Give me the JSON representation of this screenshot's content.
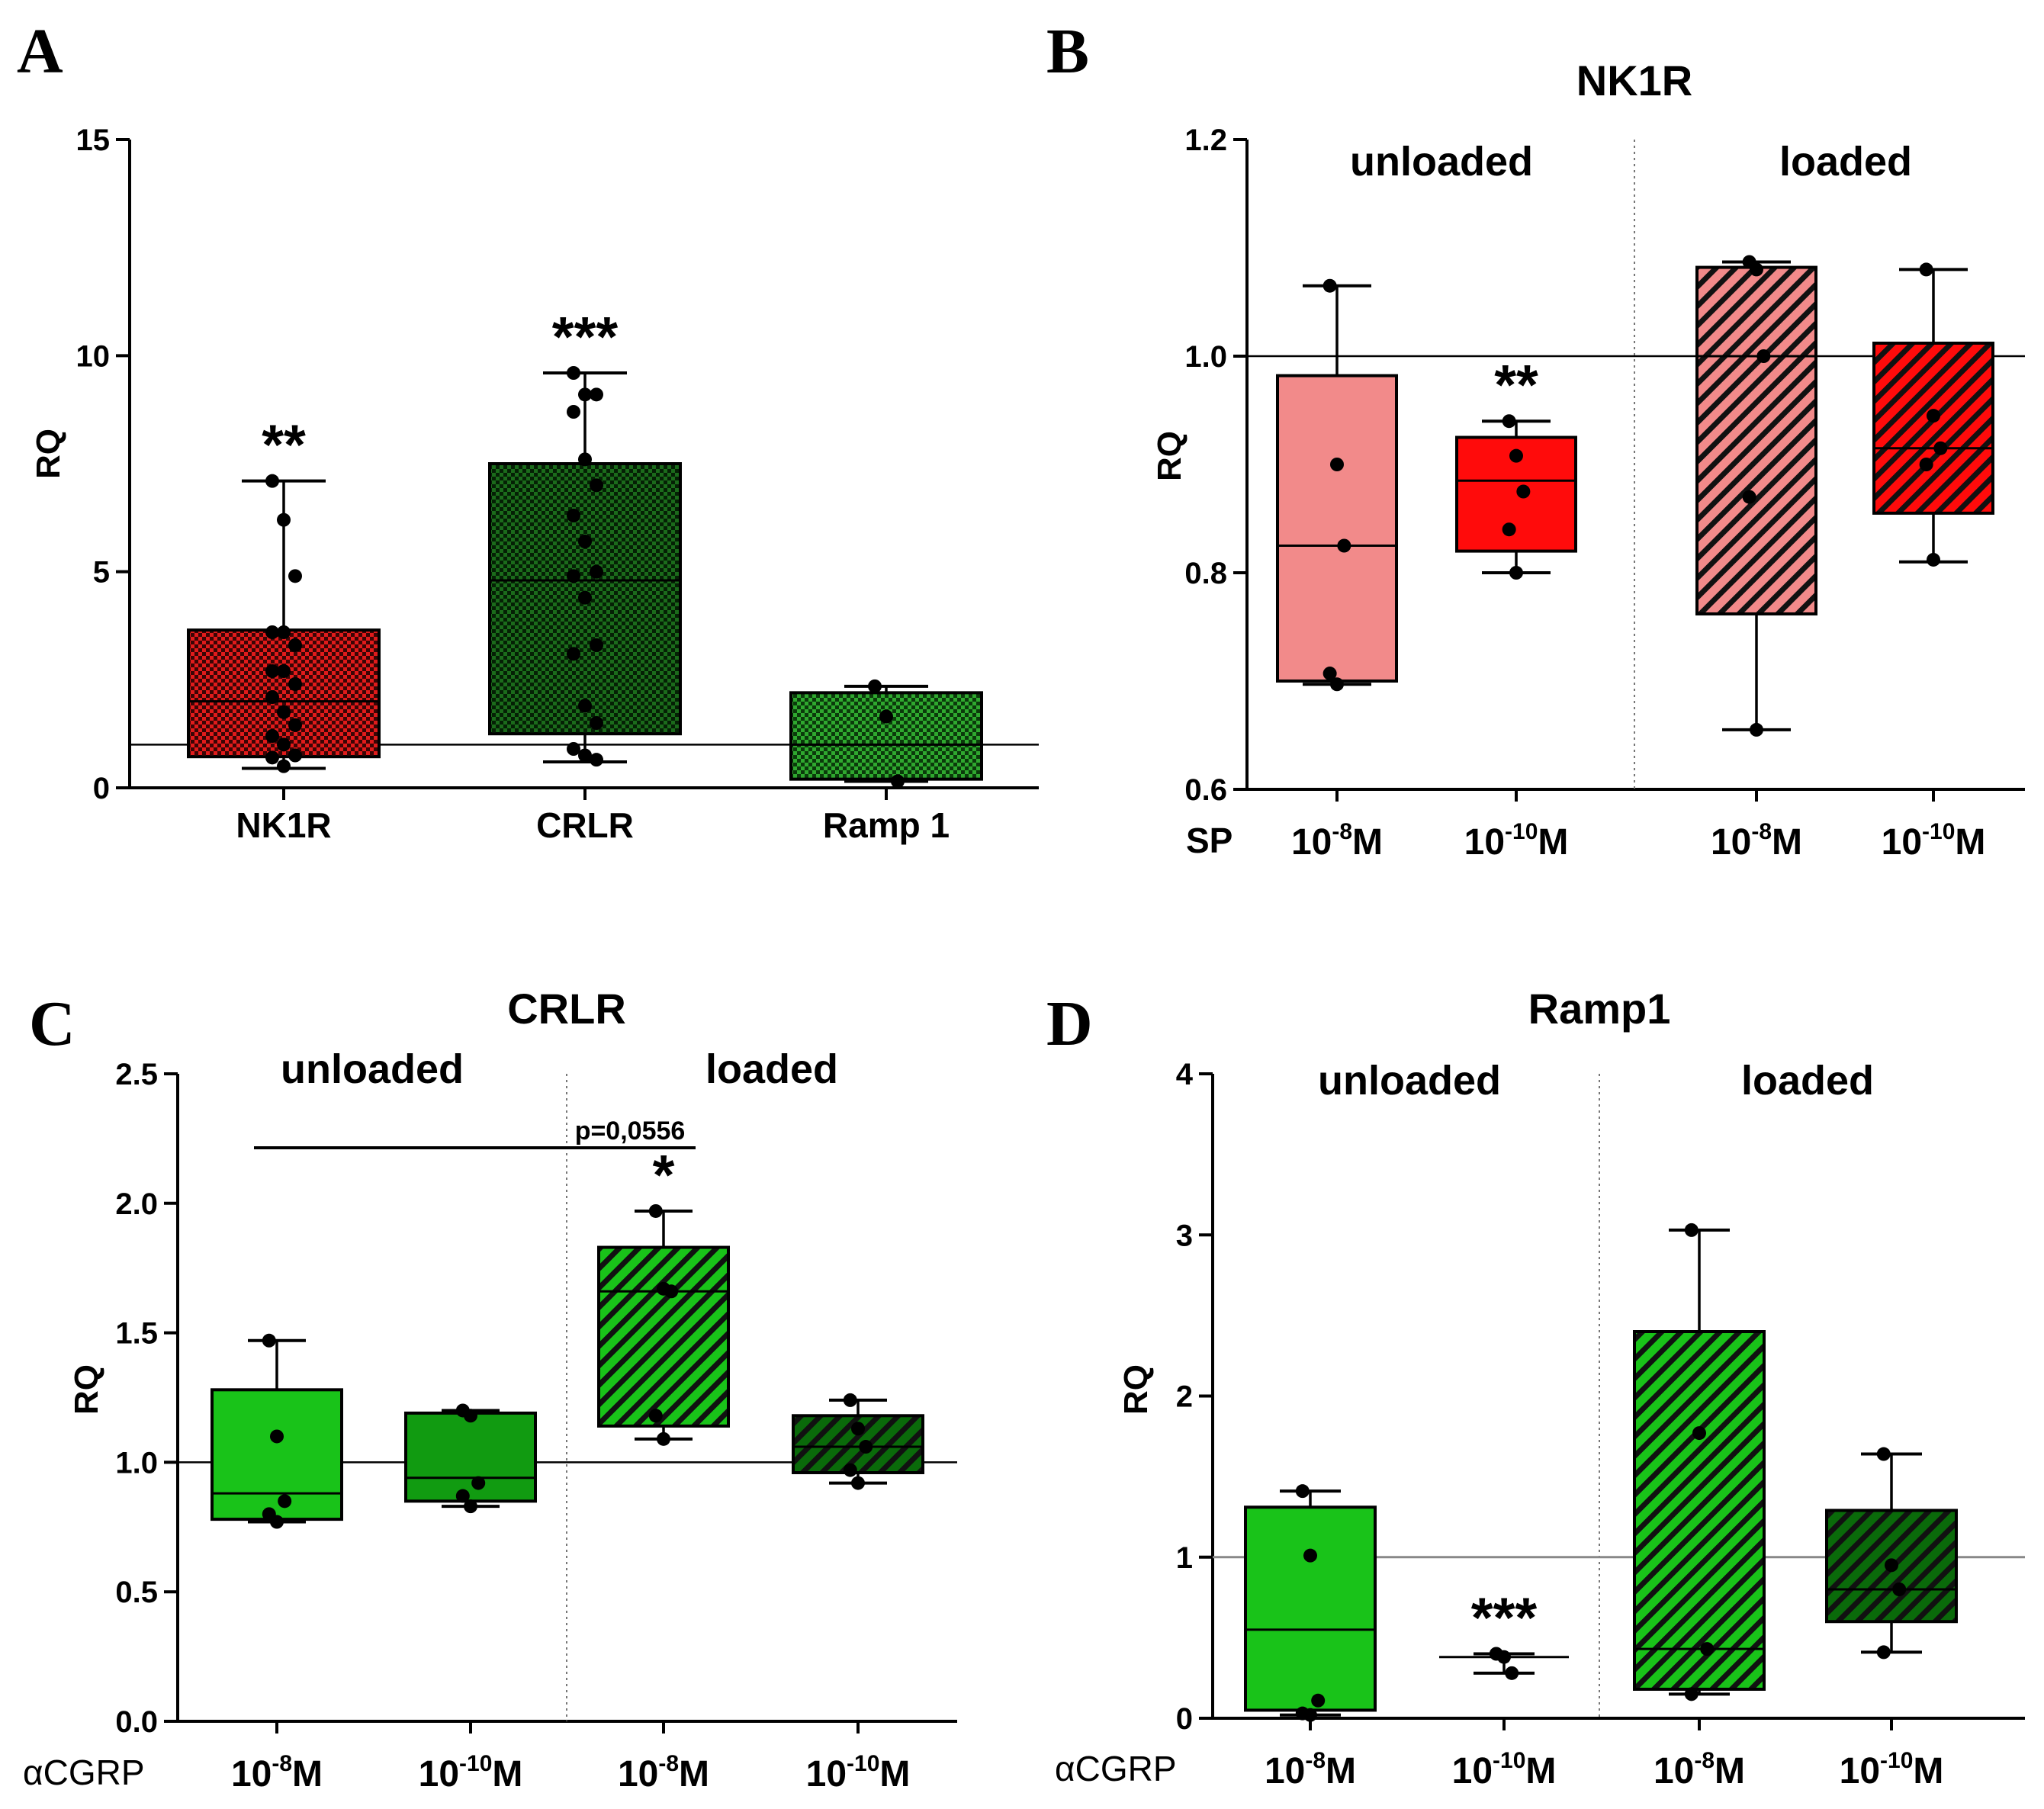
{
  "colors": {
    "nk1r_red": "#e01b1b",
    "crlr_green_dark": "#1b6b1b",
    "ramp_green": "#2fa82f",
    "pink": "#f28a8a",
    "red": "#ff0b0b",
    "green": "#19c319",
    "green_mid": "#119b11",
    "green_dark": "#0a6a0a",
    "axis": "#000000"
  },
  "chart_data": [
    {
      "panel": "A",
      "type": "box",
      "title": "",
      "ylabel": "RQ",
      "ylim": [
        0,
        15
      ],
      "yticks": [
        "0",
        "5",
        "10",
        "15"
      ],
      "reference_line": 1,
      "categories": [
        "NK1R",
        "CRLR",
        "Ramp 1"
      ],
      "boxes": [
        {
          "name": "NK1R",
          "min": 0.45,
          "q1": 0.72,
          "median": 2.0,
          "q3": 3.65,
          "max": 7.1,
          "points": [
            7.1,
            6.2,
            4.9,
            3.6,
            3.6,
            3.3,
            2.7,
            2.7,
            2.4,
            2.1,
            1.75,
            1.45,
            1.2,
            1.0,
            0.75,
            0.7,
            0.5
          ],
          "stars": "**",
          "color": "#e01b1b",
          "pattern": "checker"
        },
        {
          "name": "CRLR",
          "min": 0.6,
          "q1": 1.25,
          "median": 4.8,
          "q3": 7.5,
          "max": 9.6,
          "points": [
            9.6,
            9.1,
            9.1,
            8.7,
            7.6,
            7.0,
            6.3,
            5.7,
            5.0,
            4.9,
            4.4,
            3.3,
            3.1,
            1.9,
            1.5,
            0.9,
            0.75,
            0.65
          ],
          "stars": "***",
          "color": "#1b6b1b",
          "pattern": "checker"
        },
        {
          "name": "Ramp 1",
          "min": 0.15,
          "q1": 0.2,
          "median": 1.0,
          "q3": 2.2,
          "max": 2.35,
          "points": [
            2.35,
            1.65,
            0.15
          ],
          "stars": "",
          "color": "#2fa82f",
          "pattern": "checker"
        }
      ]
    },
    {
      "panel": "B",
      "type": "box",
      "title": "NK1R",
      "ylabel": "RQ",
      "ylim": [
        0.6,
        1.2
      ],
      "yticks": [
        "0.6",
        "0.8",
        "1.0",
        "1.2"
      ],
      "reference_line": 1.0,
      "treatment_label": "SP",
      "groups": [
        "unloaded",
        "loaded"
      ],
      "boxes": [
        {
          "group": "unloaded",
          "dose_base": "10",
          "dose_exp": "-8",
          "dose_unit": "M",
          "min": 0.697,
          "q1": 0.7,
          "median": 0.825,
          "q3": 0.982,
          "max": 1.065,
          "points": [
            1.065,
            0.9,
            0.825,
            0.707,
            0.697
          ],
          "stars": "",
          "color": "#f28a8a",
          "pattern": "solid"
        },
        {
          "group": "unloaded",
          "dose_base": "10",
          "dose_exp": "-10",
          "dose_unit": "M",
          "min": 0.8,
          "q1": 0.82,
          "median": 0.885,
          "q3": 0.925,
          "max": 0.94,
          "points": [
            0.94,
            0.908,
            0.875,
            0.84,
            0.8
          ],
          "stars": "**",
          "color": "#ff0b0b",
          "pattern": "solid"
        },
        {
          "group": "loaded",
          "dose_base": "10",
          "dose_exp": "-8",
          "dose_unit": "M",
          "min": 0.655,
          "q1": 0.762,
          "median": 1.0,
          "q3": 1.082,
          "max": 1.087,
          "points": [
            1.087,
            1.08,
            1.0,
            0.87,
            0.655
          ],
          "stars": "",
          "color": "#f28a8a",
          "pattern": "hatch"
        },
        {
          "group": "loaded",
          "dose_base": "10",
          "dose_exp": "-10",
          "dose_unit": "M",
          "min": 0.81,
          "q1": 0.855,
          "median": 0.915,
          "q3": 1.012,
          "max": 1.08,
          "points": [
            1.08,
            0.945,
            0.915,
            0.9,
            0.812
          ],
          "stars": "",
          "color": "#ff0b0b",
          "pattern": "hatch"
        }
      ]
    },
    {
      "panel": "C",
      "type": "box",
      "title": "CRLR",
      "ylabel": "RQ",
      "ylim": [
        0.0,
        2.5
      ],
      "yticks": [
        "0.0",
        "0.5",
        "1.0",
        "1.5",
        "2.0",
        "2.5"
      ],
      "reference_line": 1.0,
      "treatment_label": "αCGRP",
      "groups": [
        "unloaded",
        "loaded"
      ],
      "annotation": "p=0,0556",
      "boxes": [
        {
          "group": "unloaded",
          "dose_base": "10",
          "dose_exp": "-8",
          "dose_unit": "M",
          "min": 0.77,
          "q1": 0.78,
          "median": 0.88,
          "q3": 1.28,
          "max": 1.47,
          "points": [
            1.47,
            1.1,
            0.85,
            0.8,
            0.77
          ],
          "stars": "",
          "color": "#19c319",
          "pattern": "solid"
        },
        {
          "group": "unloaded",
          "dose_base": "10",
          "dose_exp": "-10",
          "dose_unit": "M",
          "min": 0.83,
          "q1": 0.85,
          "median": 0.94,
          "q3": 1.19,
          "max": 1.2,
          "points": [
            1.2,
            1.18,
            0.92,
            0.87,
            0.83
          ],
          "stars": "",
          "color": "#119b11",
          "pattern": "solid"
        },
        {
          "group": "loaded",
          "dose_base": "10",
          "dose_exp": "-8",
          "dose_unit": "M",
          "min": 1.09,
          "q1": 1.14,
          "median": 1.66,
          "q3": 1.83,
          "max": 1.97,
          "points": [
            1.97,
            1.67,
            1.66,
            1.18,
            1.09
          ],
          "stars": "*",
          "color": "#19c319",
          "pattern": "hatch"
        },
        {
          "group": "loaded",
          "dose_base": "10",
          "dose_exp": "-10",
          "dose_unit": "M",
          "min": 0.92,
          "q1": 0.96,
          "median": 1.06,
          "q3": 1.18,
          "max": 1.24,
          "points": [
            1.24,
            1.13,
            1.06,
            0.97,
            0.92
          ],
          "stars": "",
          "color": "#0a6a0a",
          "pattern": "hatch"
        }
      ]
    },
    {
      "panel": "D",
      "type": "box",
      "title": "Ramp1",
      "ylabel": "RQ",
      "ylim": [
        0,
        4
      ],
      "yticks": [
        "0",
        "1",
        "2",
        "3",
        "4"
      ],
      "reference_line": 1,
      "treatment_label": "αCGRP",
      "groups": [
        "unloaded",
        "loaded"
      ],
      "boxes": [
        {
          "group": "unloaded",
          "dose_base": "10",
          "dose_exp": "-8",
          "dose_unit": "M",
          "min": 0.02,
          "q1": 0.05,
          "median": 0.55,
          "q3": 1.31,
          "max": 1.41,
          "points": [
            1.41,
            1.01,
            0.11,
            0.03,
            0.02
          ],
          "stars": "",
          "color": "#19c319",
          "pattern": "solid"
        },
        {
          "group": "unloaded",
          "dose_base": "10",
          "dose_exp": "-10",
          "dose_unit": "M",
          "min": 0.28,
          "q1": 0.38,
          "median": 0.38,
          "q3": 0.38,
          "max": 0.4,
          "points": [
            0.4,
            0.38,
            0.28
          ],
          "stars": "***",
          "color": "#119b11",
          "pattern": "solid"
        },
        {
          "group": "loaded",
          "dose_base": "10",
          "dose_exp": "-8",
          "dose_unit": "M",
          "min": 0.15,
          "q1": 0.18,
          "median": 0.43,
          "q3": 2.4,
          "max": 3.03,
          "points": [
            3.03,
            1.77,
            0.43,
            0.15
          ],
          "stars": "",
          "color": "#19c319",
          "pattern": "hatch"
        },
        {
          "group": "loaded",
          "dose_base": "10",
          "dose_exp": "-10",
          "dose_unit": "M",
          "min": 0.41,
          "q1": 0.6,
          "median": 0.8,
          "q3": 1.29,
          "max": 1.64,
          "points": [
            1.64,
            0.95,
            0.8,
            0.41
          ],
          "stars": "",
          "color": "#0a6a0a",
          "pattern": "hatch"
        }
      ]
    }
  ],
  "panel_letters": [
    "A",
    "B",
    "C",
    "D"
  ]
}
